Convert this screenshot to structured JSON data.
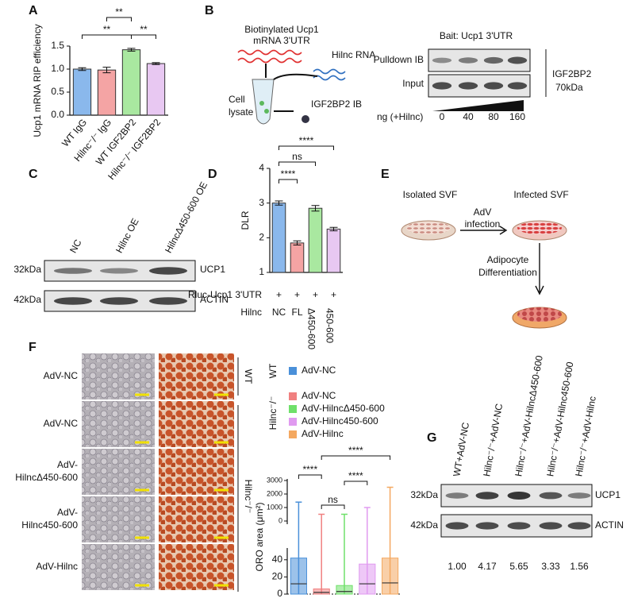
{
  "panel_labels": [
    "A",
    "B",
    "C",
    "D",
    "E",
    "F",
    "G"
  ],
  "panel_b": {
    "probe": [
      "Biotinylated Ucp1",
      "mRNA 3'UTR"
    ],
    "rna": "Hilnc RNA",
    "lysate": [
      "Cell",
      "lysate"
    ],
    "ib": "IGF2BP2 IB",
    "bait": "Bait: Ucp1 3'UTR",
    "rows": [
      "Pulldown IB",
      "Input"
    ],
    "protein": "IGF2BP2",
    "size": "70kDa",
    "dose_label": "ng (+Hilnc)",
    "doses": [
      0,
      40,
      80,
      160
    ]
  },
  "panel_c": {
    "lanes": [
      "NC",
      "Hilnc OE",
      "HilncΔ450-600 OE"
    ],
    "blots": [
      {
        "size": "32kDa",
        "protein": "UCP1"
      },
      {
        "size": "42kDa",
        "protein": "ACTIN"
      }
    ]
  },
  "panel_e": {
    "steps": [
      "Isolated SVF",
      "Infected SVF"
    ],
    "arrow1": [
      "AdV",
      "infection"
    ],
    "arrow2": [
      "Adipocyte",
      "Differentiation"
    ]
  },
  "panel_f": {
    "rows": [
      [
        "AdV-NC"
      ],
      [
        "AdV-NC"
      ],
      [
        "AdV-",
        "HilncΔ450-600"
      ],
      [
        "AdV-",
        "Hilnc450-600"
      ],
      [
        "AdV-Hilnc"
      ]
    ],
    "side_labels": [
      "WT",
      "Hilnc⁻/⁻"
    ]
  },
  "panel_g": {
    "lanes": [
      "WT+AdV-NC",
      "Hilnc⁻/⁻+AdV-NC",
      "Hilnc⁻/⁻+AdV-HilncΔ450-600",
      "Hilnc⁻/⁻+AdV-Hilnc450-600",
      "Hilnc⁻/⁻+AdV-Hilnc"
    ],
    "blots": [
      {
        "size": "32kDa",
        "protein": "UCP1"
      },
      {
        "size": "42kDa",
        "protein": "ACTIN"
      }
    ],
    "ratios": [
      "1.00",
      "4.17",
      "5.65",
      "3.33",
      "1.56"
    ]
  },
  "chart_data": [
    {
      "type": "bar",
      "ylabel": "Ucp1 mRNA RIP efficiency",
      "categories": [
        "WT IgG",
        "Hilnc⁻/⁻ IgG",
        "WT IGF2BP2",
        "Hilnc⁻/⁻ IGF2BP2"
      ],
      "values": [
        1.0,
        0.98,
        1.42,
        1.12
      ],
      "errors": [
        0.03,
        0.06,
        0.03,
        0.02
      ],
      "colors": [
        "#8ab8ec",
        "#f4a4a4",
        "#a9e8a0",
        "#e8c8f2"
      ],
      "ylim": [
        0,
        1.5
      ],
      "yticks": [
        {
          "value": 0,
          "label": "0.0"
        },
        {
          "value": 0.5,
          "label": "0.5"
        },
        {
          "value": 1,
          "label": "1.0"
        },
        {
          "value": 1.5,
          "label": "1.5"
        }
      ],
      "annotations": [
        "**",
        "**",
        "**"
      ]
    },
    {
      "type": "bar",
      "ylabel": "DLR",
      "reporter": "Rluc-Ucp1 3'UTR",
      "hilnc": "Hilnc",
      "plus": "+",
      "categories": [
        "NC",
        "FL",
        "Δ450-600",
        "450-600"
      ],
      "values": [
        3.0,
        1.85,
        2.85,
        2.25
      ],
      "errors": [
        0.06,
        0.06,
        0.08,
        0.05
      ],
      "colors": [
        "#8ab8ec",
        "#f4a4a4",
        "#a9e8a0",
        "#e8c8f2"
      ],
      "ylim": [
        1,
        4
      ],
      "yticks": [
        1,
        2,
        3,
        4
      ],
      "annotations": [
        "****",
        "ns",
        "****"
      ]
    },
    {
      "type": "box",
      "ylabel": "ORO area (μm²)",
      "ylim": [
        0,
        50
      ],
      "yticks": [
        0,
        20,
        40
      ],
      "upper_ylim": [
        0,
        3000
      ],
      "upper_yticks": [
        0,
        1000,
        2000,
        3000
      ],
      "legend_groups": [
        "WT",
        "Hilnc⁻/⁻"
      ],
      "series": [
        {
          "name": "AdV-NC",
          "color": "#4a90d9",
          "min": 0,
          "q1": 0,
          "median": 12,
          "q3": 42,
          "max": 1400
        },
        {
          "name": "AdV-NC",
          "color": "#f08080",
          "min": 0,
          "q1": 0,
          "median": 2,
          "q3": 6,
          "max": 500
        },
        {
          "name": "AdV-HilncΔ450-600",
          "color": "#6fe06a",
          "min": 0,
          "q1": 0,
          "median": 3,
          "q3": 10,
          "max": 500
        },
        {
          "name": "AdV-Hilnc450-600",
          "color": "#e09af0",
          "min": 0,
          "q1": 0,
          "median": 12,
          "q3": 35,
          "max": 1000
        },
        {
          "name": "AdV-Hilnc",
          "color": "#f4a860",
          "min": 0,
          "q1": 0,
          "median": 13,
          "q3": 42,
          "max": 2500
        }
      ],
      "annotations": [
        "****",
        "****",
        "ns",
        "****"
      ]
    }
  ]
}
